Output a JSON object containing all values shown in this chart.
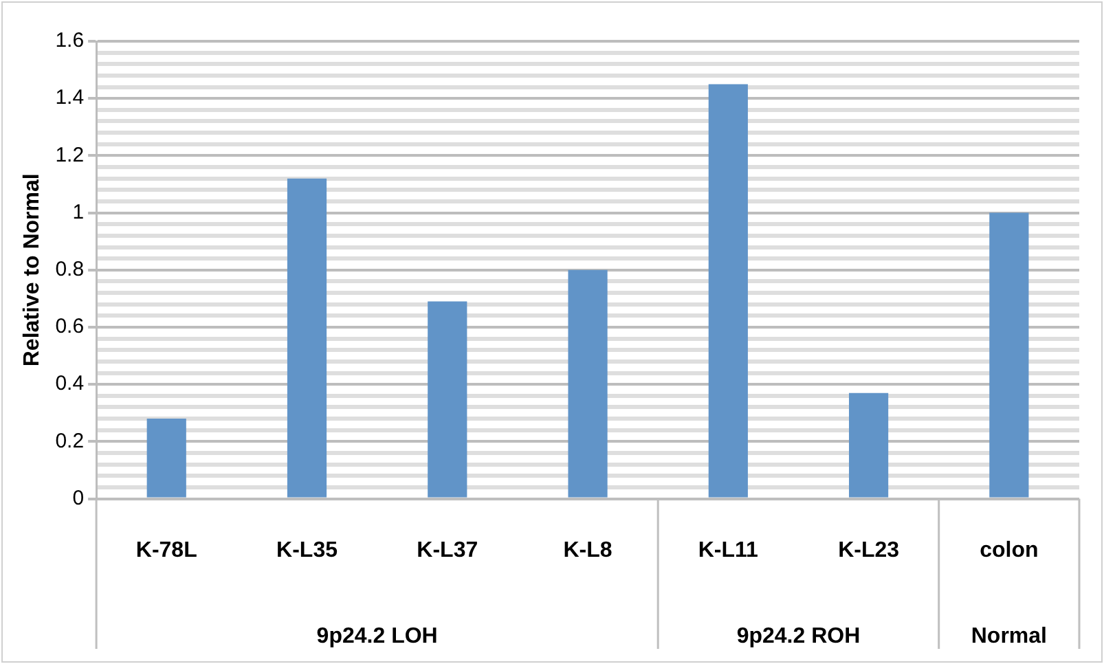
{
  "chart_data": {
    "type": "bar",
    "ylabel": "Relative to Normal",
    "categories": [
      "K-78L",
      "K-L35",
      "K-L37",
      "K-L8",
      "K-L11",
      "K-L23",
      "colon"
    ],
    "values": [
      0.28,
      1.12,
      0.69,
      0.8,
      1.45,
      0.37,
      1.0
    ],
    "color": "#6194c8",
    "ylim": [
      0,
      1.6
    ],
    "yticks": [
      0,
      {
        "value": 0.04,
        "label": null
      },
      {
        "value": 0.08,
        "label": null
      },
      {
        "value": 0.12,
        "label": null
      },
      {
        "value": 0.16,
        "label": null
      },
      0.2,
      {
        "value": 0.24,
        "label": null
      },
      {
        "value": 0.28,
        "label": null
      },
      {
        "value": 0.32,
        "label": null
      },
      {
        "value": 0.36,
        "label": null
      },
      0.4,
      {
        "value": 0.44,
        "label": null
      },
      {
        "value": 0.48,
        "label": null
      },
      {
        "value": 0.52,
        "label": null
      },
      {
        "value": 0.56,
        "label": null
      },
      0.6,
      {
        "value": 0.64,
        "label": null
      },
      {
        "value": 0.68,
        "label": null
      },
      {
        "value": 0.72,
        "label": null
      },
      {
        "value": 0.76,
        "label": null
      },
      0.8,
      {
        "value": 0.84,
        "label": null
      },
      {
        "value": 0.88,
        "label": null
      },
      {
        "value": 0.92,
        "label": null
      },
      {
        "value": 0.96,
        "label": null
      },
      1,
      {
        "value": 1.04,
        "label": null
      },
      {
        "value": 1.08,
        "label": null
      },
      {
        "value": 1.12,
        "label": null
      },
      {
        "value": 1.16,
        "label": null
      },
      1.2,
      {
        "value": 1.24,
        "label": null
      },
      {
        "value": 1.28,
        "label": null
      },
      {
        "value": 1.32,
        "label": null
      },
      {
        "value": 1.36,
        "label": null
      },
      1.4,
      {
        "value": 1.44,
        "label": null
      },
      {
        "value": 1.48,
        "label": null
      },
      {
        "value": 1.52,
        "label": null
      },
      {
        "value": 1.56,
        "label": null
      },
      1.6
    ],
    "grid": "y",
    "legend": false,
    "annotations": [
      "9p24.2 LOH",
      "9p24.2 ROH",
      "Normal"
    ]
  }
}
